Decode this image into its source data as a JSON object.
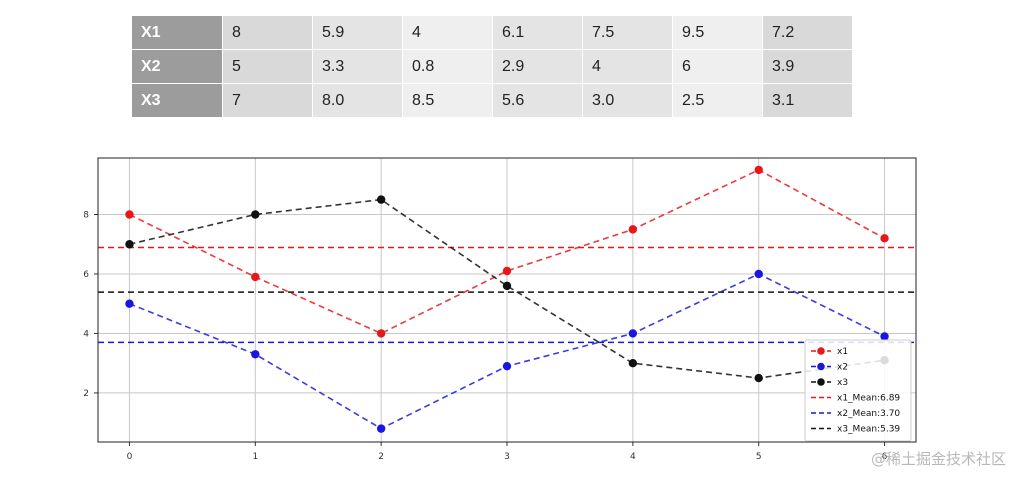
{
  "table": {
    "rows": [
      {
        "label": "X1",
        "values": [
          "8",
          "5.9",
          "4",
          "6.1",
          "7.5",
          "9.5",
          "7.2"
        ]
      },
      {
        "label": "X2",
        "values": [
          "5",
          "3.3",
          "0.8",
          "2.9",
          "4",
          "6",
          "3.9"
        ]
      },
      {
        "label": "X3",
        "values": [
          "7",
          "8.0",
          "8.5",
          "5.6",
          "3.0",
          "2.5",
          "3.1"
        ]
      }
    ],
    "label_bg": "#9c9c9c",
    "cell_shades": [
      "#d9d9d9",
      "#e4e4e4",
      "#efefef",
      "#e4e4e4",
      "#e4e4e4",
      "#efefef",
      "#d9d9d9"
    ]
  },
  "chart_data": {
    "type": "line",
    "x": [
      0,
      1,
      2,
      3,
      4,
      5,
      6
    ],
    "xticks": [
      "0",
      "1",
      "2",
      "3",
      "4",
      "5",
      "6"
    ],
    "yticks": [
      "2",
      "4",
      "6",
      "8"
    ],
    "xlim": [
      -0.25,
      6.25
    ],
    "ylim": [
      0.35,
      9.9
    ],
    "grid": true,
    "legend_position": "lower-right",
    "series": [
      {
        "name": "x1",
        "values": [
          8,
          5.9,
          4,
          6.1,
          7.5,
          9.5,
          7.2
        ],
        "color": "#e8171a",
        "style": "dashed-markers"
      },
      {
        "name": "x2",
        "values": [
          5,
          3.3,
          0.8,
          2.9,
          4,
          6,
          3.9
        ],
        "color": "#1717e0",
        "style": "dashed-markers"
      },
      {
        "name": "x3",
        "values": [
          7,
          8.0,
          8.5,
          5.6,
          3.0,
          2.5,
          3.1
        ],
        "color": "#111111",
        "style": "dashed-markers"
      }
    ],
    "mean_lines": [
      {
        "name": "x1_Mean:6.89",
        "value": 6.89,
        "color": "#e8171a"
      },
      {
        "name": "x2_Mean:3.70",
        "value": 3.7,
        "color": "#1717e0"
      },
      {
        "name": "x3_Mean:5.39",
        "value": 5.39,
        "color": "#111111"
      }
    ]
  },
  "watermark": "@稀土掘金技术社区"
}
